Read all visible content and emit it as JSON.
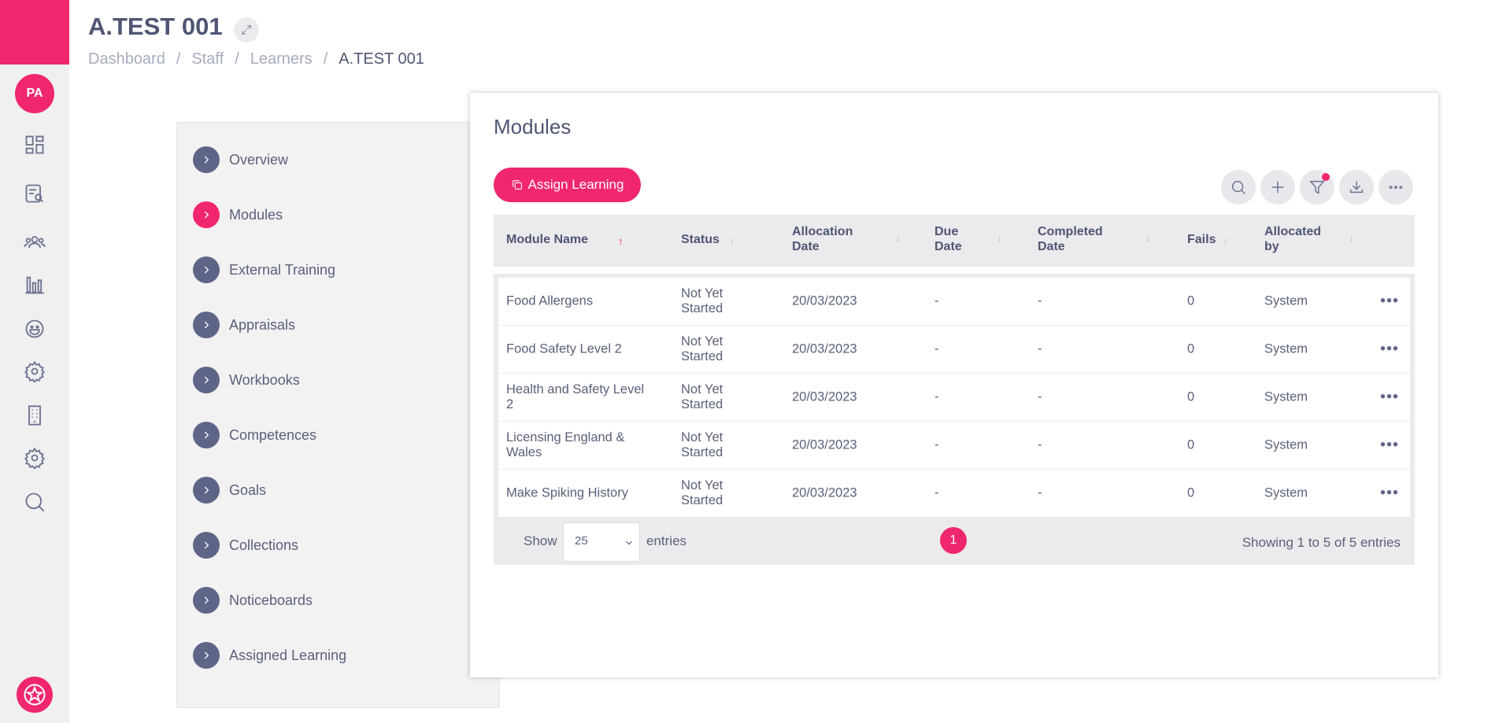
{
  "colors": {
    "accent": "#f0266e",
    "nav_bullet": "#5f6587",
    "rail_bg": "#f0f0f1"
  },
  "rail": {
    "avatar": "PA",
    "icons": [
      "dashboard-icon",
      "search-document-icon",
      "users-icon",
      "bar-chart-icon",
      "smiley-icon",
      "gear-icon",
      "building-icon",
      "settings-cog-icon",
      "search-icon"
    ],
    "bottom_icon": "star-badge-icon"
  },
  "header": {
    "title": "A.TEST 001",
    "breadcrumb": [
      "Dashboard",
      "Staff",
      "Learners",
      "A.TEST 001"
    ],
    "separator": "/"
  },
  "nav": {
    "items": [
      {
        "label": "Overview",
        "active": false
      },
      {
        "label": "Modules",
        "active": true
      },
      {
        "label": "External Training",
        "active": false
      },
      {
        "label": "Appraisals",
        "active": false
      },
      {
        "label": "Workbooks",
        "active": false
      },
      {
        "label": "Competences",
        "active": false
      },
      {
        "label": "Goals",
        "active": false
      },
      {
        "label": "Collections",
        "active": false
      },
      {
        "label": "Noticeboards",
        "active": false
      },
      {
        "label": "Assigned Learning",
        "active": false
      }
    ]
  },
  "modules": {
    "title": "Modules",
    "assign_label": "Assign Learning",
    "toolbar": [
      "search-icon",
      "add-icon",
      "filter-icon",
      "download-icon",
      "more-icon"
    ],
    "columns": [
      {
        "line1": "Module Name",
        "line2": ""
      },
      {
        "line1": "Status",
        "line2": ""
      },
      {
        "line1": "Allocation",
        "line2": "Date"
      },
      {
        "line1": "Due",
        "line2": "Date"
      },
      {
        "line1": "Completed",
        "line2": "Date"
      },
      {
        "line1": "Fails",
        "line2": ""
      },
      {
        "line1": "Allocated",
        "line2": "by"
      }
    ],
    "rows": [
      {
        "name1": "Food Allergens",
        "name2": "",
        "status1": "Not Yet",
        "status2": "Started",
        "allocation": "20/03/2023",
        "due": "-",
        "completed": "-",
        "fails": "0",
        "by": "System"
      },
      {
        "name1": "Food Safety Level 2",
        "name2": "",
        "status1": "Not Yet",
        "status2": "Started",
        "allocation": "20/03/2023",
        "due": "-",
        "completed": "-",
        "fails": "0",
        "by": "System"
      },
      {
        "name1": "Health and Safety Level",
        "name2": "2",
        "status1": "Not Yet",
        "status2": "Started",
        "allocation": "20/03/2023",
        "due": "-",
        "completed": "-",
        "fails": "0",
        "by": "System"
      },
      {
        "name1": "Licensing England &",
        "name2": "Wales",
        "status1": "Not Yet",
        "status2": "Started",
        "allocation": "20/03/2023",
        "due": "-",
        "completed": "-",
        "fails": "0",
        "by": "System"
      },
      {
        "name1": "Make Spiking History",
        "name2": "",
        "status1": "Not Yet",
        "status2": "Started",
        "allocation": "20/03/2023",
        "due": "-",
        "completed": "-",
        "fails": "0",
        "by": "System"
      }
    ],
    "footer": {
      "show_label": "Show",
      "page_size": "25",
      "entries_label": "entries",
      "current_page": "1",
      "showing": "Showing 1 to 5 of 5 entries"
    }
  }
}
